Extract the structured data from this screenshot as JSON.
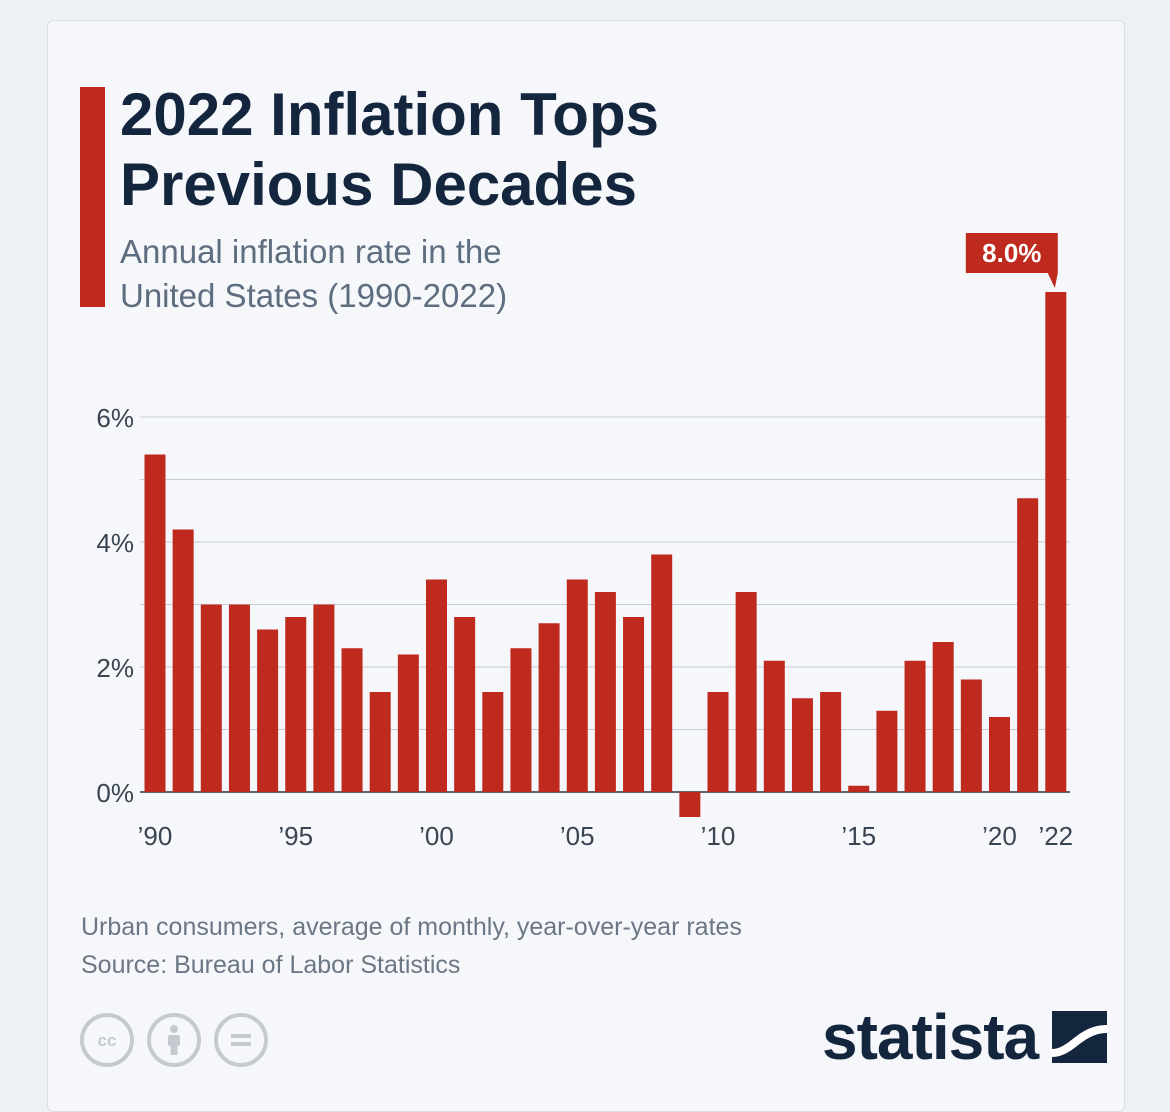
{
  "title_line1": "2022 Inflation Tops",
  "title_line2": "Previous Decades",
  "subtitle_line1": "Annual inflation rate in the",
  "subtitle_line2": "United States (1990-2022)",
  "footnote_line1": "Urban consumers, average of monthly, year-over-year rates",
  "footnote_line2": "Source: Bureau of Labor Statistics",
  "brand": "statista",
  "colors": {
    "bar": "#bf2a1f",
    "title": "#14253e",
    "grid": "#c8cdd3"
  },
  "icons": [
    "cc-icon",
    "attribution-icon",
    "no-derivatives-icon"
  ],
  "chart_data": {
    "type": "bar",
    "title": "2022 Inflation Tops Previous Decades",
    "subtitle": "Annual inflation rate in the United States (1990-2022)",
    "xlabel": "",
    "ylabel": "",
    "years": [
      1990,
      1991,
      1992,
      1993,
      1994,
      1995,
      1996,
      1997,
      1998,
      1999,
      2000,
      2001,
      2002,
      2003,
      2004,
      2005,
      2006,
      2007,
      2008,
      2009,
      2010,
      2011,
      2012,
      2013,
      2014,
      2015,
      2016,
      2017,
      2018,
      2019,
      2020,
      2021,
      2022
    ],
    "values": [
      5.4,
      4.2,
      3.0,
      3.0,
      2.6,
      2.8,
      3.0,
      2.3,
      1.6,
      2.2,
      3.4,
      2.8,
      1.6,
      2.3,
      2.7,
      3.4,
      3.2,
      2.8,
      3.8,
      -0.4,
      1.6,
      3.2,
      2.1,
      1.5,
      1.6,
      0.1,
      1.3,
      2.1,
      2.4,
      1.8,
      1.2,
      4.7,
      8.0
    ],
    "x_tick_labels": [
      {
        "index": 0,
        "label": "’90"
      },
      {
        "index": 5,
        "label": "’95"
      },
      {
        "index": 10,
        "label": "’00"
      },
      {
        "index": 15,
        "label": "’05"
      },
      {
        "index": 20,
        "label": "’10"
      },
      {
        "index": 25,
        "label": "’15"
      },
      {
        "index": 30,
        "label": "’20"
      },
      {
        "index": 32,
        "label": "’22"
      }
    ],
    "y_ticks": [
      {
        "value": 0,
        "label": "0%"
      },
      {
        "value": 2,
        "label": "2%"
      },
      {
        "value": 4,
        "label": "4%"
      },
      {
        "value": 6,
        "label": "6%"
      }
    ],
    "gridlines": [
      0,
      1,
      2,
      3,
      4,
      5,
      6
    ],
    "ylim": [
      -0.4,
      8.0
    ],
    "grid": true,
    "annotation": {
      "index": 32,
      "label": "8.0%"
    }
  }
}
